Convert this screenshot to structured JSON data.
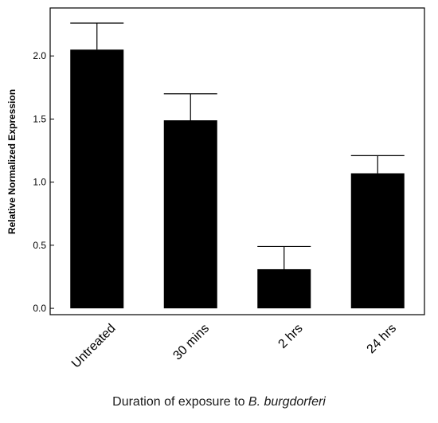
{
  "chart_data": {
    "type": "bar",
    "categories": [
      "Untreated",
      "30 mins",
      "2 hrs",
      "24 hrs"
    ],
    "values": [
      2.05,
      1.49,
      0.31,
      1.07
    ],
    "error_upper": [
      2.26,
      1.7,
      0.49,
      1.21
    ],
    "ylabel": "Relative Normalized Expression",
    "xlabel_prefix": "Duration of exposure to ",
    "xlabel_italic": "B. burgdorferi",
    "ylim": [
      -0.05,
      2.38
    ],
    "yticks": [
      0.0,
      0.5,
      1.0,
      1.5,
      2.0
    ],
    "ytick_labels": [
      "0.0",
      "0.5",
      "1.0",
      "1.5",
      "2.0"
    ],
    "grid": false,
    "bar_color": "#000000"
  }
}
